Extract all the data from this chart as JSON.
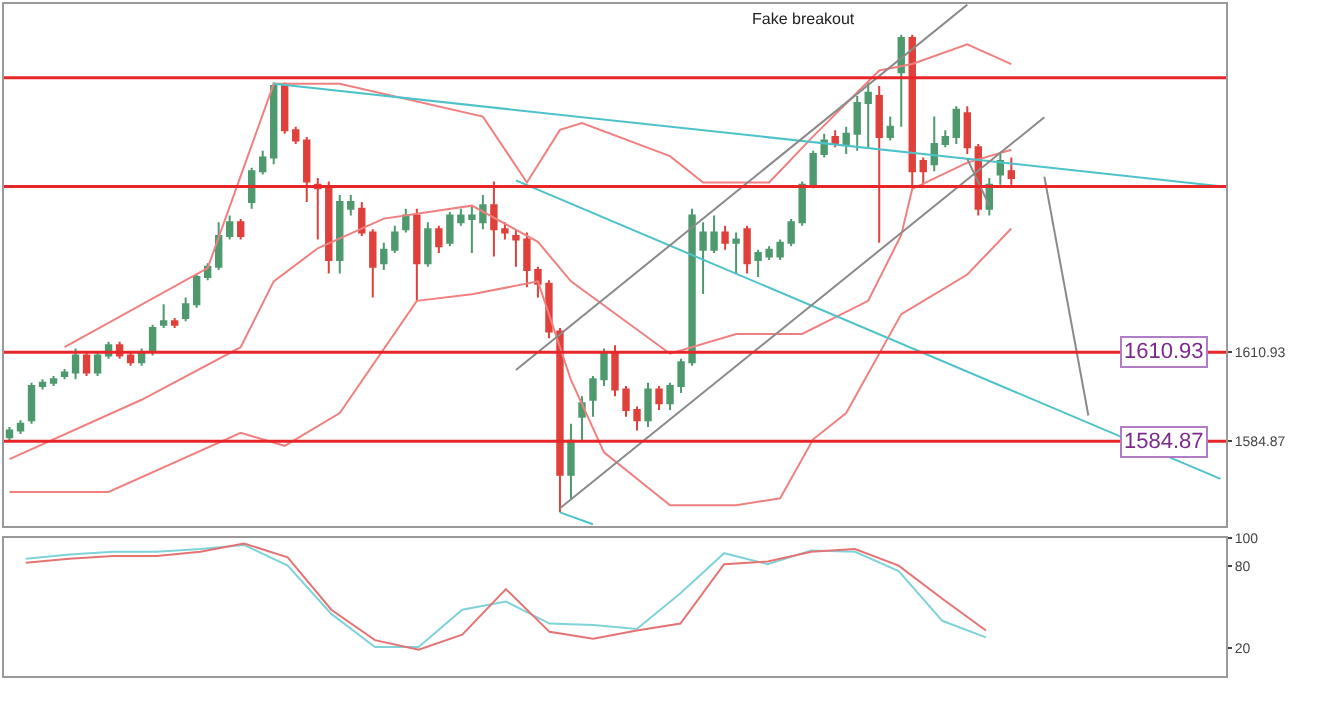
{
  "chart_data": [
    {
      "type": "candlestick",
      "ylim": [
        1560,
        1713
      ],
      "yticks": [
        {
          "value": 1610.93,
          "label": "1610.93"
        },
        {
          "value": 1584.87,
          "label": "1584.87"
        }
      ],
      "tick_labels": "y",
      "categories": [
        null,
        null,
        null,
        null,
        null,
        null,
        null,
        null,
        null,
        null,
        null,
        null,
        null,
        null,
        null,
        null,
        null,
        null,
        null,
        null,
        null,
        null,
        null,
        null,
        null,
        null,
        null,
        null,
        null,
        null,
        null,
        null,
        null,
        null,
        null,
        null,
        null,
        null,
        null,
        null,
        null,
        null,
        null,
        null,
        null,
        null,
        null,
        null,
        null,
        null,
        null,
        null,
        null,
        null,
        null,
        null,
        null,
        null,
        null,
        null,
        null,
        null,
        null,
        null,
        null,
        null,
        null,
        null,
        null,
        null,
        null,
        null,
        null,
        null,
        null,
        null,
        null,
        null,
        null,
        null,
        null,
        null,
        null,
        null,
        null,
        null,
        null,
        null,
        null,
        null,
        null,
        null,
        null,
        null,
        null,
        null,
        null,
        null,
        null,
        null,
        null,
        null,
        null,
        null,
        null,
        null,
        null,
        null,
        null,
        null,
        null
      ],
      "annotations": [
        "Fake breakout"
      ],
      "ref_lines": [
        {
          "axis": "y",
          "value": 1691.4,
          "label": null,
          "color": "#e8262a"
        },
        {
          "axis": "y",
          "value": 1659.5,
          "label": null,
          "color": "#e8262a"
        },
        {
          "axis": "y",
          "value": 1610.93,
          "label": "1610.93",
          "color": "#e8262a"
        },
        {
          "axis": "y",
          "value": 1584.87,
          "label": "1584.87",
          "color": "#e8262a"
        }
      ],
      "series": [
        {
          "type": "line",
          "color": "#f08080",
          "values": [
            null,
            null,
            null,
            null,
            null,
            1612.4,
            null,
            null,
            null,
            null,
            null,
            null,
            null,
            null,
            null,
            null,
            null,
            null,
            1635.6,
            null,
            null,
            null,
            null,
            null,
            1689.6,
            null,
            null,
            null,
            null,
            null,
            1689.6,
            null,
            null,
            null,
            null,
            null,
            null,
            null,
            null,
            null,
            null,
            null,
            null,
            1680,
            null,
            null,
            null,
            1660.7,
            null,
            null,
            1676.1,
            null,
            1678.1,
            null,
            null,
            null,
            null,
            null,
            null,
            null,
            1668.4,
            null,
            null,
            1660.7,
            null,
            null,
            null,
            null,
            null,
            1660.7,
            null,
            null,
            null,
            1674.2,
            null,
            null,
            null,
            null,
            null,
            1693.5,
            null,
            null,
            1695.4,
            null,
            null,
            null,
            null,
            1701.2,
            null,
            null,
            null,
            1695.4,
            null,
            null,
            null,
            null,
            null,
            null,
            null,
            null,
            null,
            null,
            null,
            null,
            null,
            null,
            null,
            null,
            null,
            null,
            null
          ]
        },
        {
          "type": "line",
          "color": "#f08080",
          "values": [
            1579.6,
            null,
            null,
            null,
            null,
            null,
            null,
            null,
            null,
            null,
            null,
            null,
            1597,
            null,
            null,
            null,
            null,
            null,
            null,
            null,
            null,
            1612.4,
            null,
            null,
            1631.7,
            null,
            null,
            null,
            1641.4,
            null,
            null,
            null,
            null,
            null,
            1650.1,
            null,
            null,
            null,
            null,
            null,
            null,
            null,
            1653.9,
            null,
            null,
            null,
            null,
            null,
            1643.3,
            null,
            null,
            1631.7,
            null,
            null,
            null,
            null,
            null,
            null,
            null,
            null,
            1610.5,
            null,
            null,
            null,
            null,
            null,
            1616.3,
            null,
            null,
            null,
            null,
            null,
            1616.3,
            null,
            null,
            null,
            null,
            null,
            1626,
            null,
            null,
            1645.3,
            1658.8,
            null,
            null,
            null,
            null,
            1666.5,
            null,
            null,
            null,
            1670.3,
            null,
            null,
            null,
            null,
            null,
            null,
            null,
            null,
            null,
            null,
            null,
            null,
            null,
            null,
            null,
            null,
            null,
            null,
            null
          ]
        },
        {
          "type": "line",
          "color": "#f08080",
          "values": [
            1570,
            null,
            null,
            null,
            null,
            null,
            null,
            null,
            null,
            1570,
            null,
            null,
            null,
            null,
            null,
            null,
            null,
            null,
            null,
            null,
            null,
            1587.3,
            null,
            null,
            null,
            1583.5,
            null,
            null,
            null,
            null,
            1593.1,
            null,
            null,
            null,
            null,
            null,
            null,
            1626,
            null,
            null,
            null,
            null,
            1627.9,
            null,
            null,
            null,
            null,
            null,
            1631.7,
            null,
            null,
            1602.8,
            null,
            null,
            1581.6,
            null,
            null,
            null,
            null,
            null,
            1566.1,
            null,
            null,
            null,
            null,
            null,
            1566.1,
            null,
            null,
            null,
            1568.1,
            null,
            null,
            1585.4,
            null,
            null,
            1593.1,
            null,
            null,
            null,
            null,
            1622.1,
            1624,
            null,
            null,
            null,
            null,
            1633.7,
            null,
            null,
            null,
            1647.2,
            null,
            null,
            null,
            null,
            null,
            null,
            null,
            null,
            null,
            null,
            null,
            null,
            null,
            null,
            null,
            null,
            null,
            null,
            null
          ]
        },
        {
          "type": "line",
          "color": "#4dc3c9",
          "values": [
            null,
            null,
            null,
            null,
            null,
            null,
            null,
            null,
            null,
            null,
            null,
            null,
            null,
            null,
            null,
            null,
            null,
            null,
            null,
            null,
            null,
            null,
            null,
            null,
            1689.6,
            null,
            null,
            null,
            null,
            null,
            null,
            null,
            null,
            null,
            null,
            null,
            null,
            null,
            null,
            null,
            null,
            null,
            null,
            null,
            null,
            null,
            null,
            null,
            null,
            null,
            null,
            null,
            null,
            null,
            null,
            null,
            null,
            null,
            null,
            null,
            null,
            null,
            null,
            null,
            null,
            null,
            null,
            null,
            null,
            null,
            null,
            null,
            null,
            null,
            null,
            null,
            null,
            null,
            null,
            null,
            null,
            null,
            null,
            null,
            null,
            null,
            null,
            null,
            null,
            null,
            null,
            null,
            null,
            null,
            null,
            null,
            null,
            null,
            null,
            null,
            null,
            null,
            null,
            null,
            null,
            null,
            null,
            null,
            null,
            null,
            1659.6
          ]
        },
        {
          "type": "line",
          "color": "#4dc3c9",
          "values": [
            null,
            null,
            null,
            null,
            null,
            null,
            null,
            null,
            null,
            null,
            null,
            null,
            null,
            null,
            null,
            null,
            null,
            null,
            null,
            null,
            null,
            null,
            null,
            null,
            null,
            null,
            null,
            null,
            null,
            null,
            null,
            null,
            null,
            null,
            null,
            null,
            null,
            null,
            null,
            null,
            null,
            null,
            null,
            null,
            null,
            null,
            1661.3,
            null,
            null,
            null,
            null,
            null,
            null,
            null,
            null,
            null,
            null,
            null,
            null,
            null,
            null,
            null,
            null,
            null,
            null,
            null,
            null,
            null,
            null,
            null,
            null,
            null,
            null,
            null,
            null,
            null,
            null,
            null,
            null,
            null,
            null,
            null,
            null,
            null,
            null,
            null,
            null,
            null,
            null,
            null,
            null,
            null,
            null,
            null,
            null,
            null,
            null,
            null,
            null,
            null,
            null,
            null,
            null,
            null,
            null,
            null,
            null,
            null,
            null,
            null,
            1573.8
          ]
        },
        {
          "type": "line",
          "color": "#4dc3c9",
          "values": [
            null,
            null,
            null,
            null,
            null,
            null,
            null,
            null,
            null,
            null,
            null,
            null,
            null,
            null,
            null,
            null,
            null,
            null,
            null,
            null,
            null,
            null,
            null,
            null,
            null,
            null,
            null,
            null,
            null,
            null,
            null,
            null,
            null,
            null,
            null,
            null,
            null,
            null,
            null,
            null,
            null,
            null,
            null,
            null,
            null,
            null,
            null,
            null,
            null,
            null,
            1564,
            null,
            null,
            1560.5,
            null,
            null,
            null,
            null,
            null,
            null,
            null,
            null,
            null,
            null,
            null,
            null,
            null,
            null,
            null,
            null,
            null,
            null,
            null,
            null,
            null,
            null,
            null,
            null,
            null,
            null,
            null,
            null,
            null,
            null,
            null,
            null,
            null,
            null,
            null,
            null,
            null,
            null,
            null,
            null,
            null,
            null,
            null,
            null,
            null,
            null,
            null,
            null,
            null,
            null,
            null,
            null,
            null,
            null,
            null,
            null,
            null
          ]
        },
        {
          "type": "line",
          "color": "#8a8a8a",
          "values": [
            null,
            null,
            null,
            null,
            null,
            null,
            null,
            null,
            null,
            null,
            null,
            null,
            null,
            null,
            null,
            null,
            null,
            null,
            null,
            null,
            null,
            null,
            null,
            null,
            null,
            null,
            null,
            null,
            null,
            null,
            null,
            null,
            null,
            null,
            null,
            null,
            null,
            null,
            null,
            null,
            null,
            null,
            null,
            null,
            null,
            null,
            1605.7,
            null,
            null,
            null,
            null,
            null,
            null,
            null,
            null,
            null,
            null,
            null,
            null,
            null,
            null,
            null,
            null,
            null,
            null,
            null,
            null,
            null,
            null,
            null,
            null,
            null,
            null,
            null,
            null,
            null,
            null,
            null,
            null,
            null,
            null,
            null,
            null,
            null,
            null,
            null,
            null,
            1712.8,
            null,
            null,
            null,
            null,
            null,
            null,
            null,
            null,
            null,
            null,
            null,
            null,
            null,
            null,
            null,
            null,
            null,
            null,
            null,
            null,
            null,
            null,
            null
          ]
        },
        {
          "type": "line",
          "color": "#8a8a8a",
          "values": [
            null,
            null,
            null,
            null,
            null,
            null,
            null,
            null,
            null,
            null,
            null,
            null,
            null,
            null,
            null,
            null,
            null,
            null,
            null,
            null,
            null,
            null,
            null,
            null,
            null,
            null,
            null,
            null,
            null,
            null,
            null,
            null,
            null,
            null,
            null,
            null,
            null,
            null,
            null,
            null,
            null,
            null,
            null,
            null,
            null,
            null,
            null,
            null,
            null,
            null,
            1565.2,
            null,
            null,
            null,
            null,
            null,
            null,
            null,
            null,
            null,
            null,
            null,
            null,
            null,
            null,
            null,
            null,
            null,
            null,
            null,
            null,
            null,
            null,
            null,
            null,
            null,
            null,
            null,
            null,
            null,
            null,
            null,
            null,
            null,
            null,
            null,
            null,
            null,
            null,
            null,
            null,
            null,
            null,
            null,
            1679.8,
            null,
            null,
            null,
            null,
            null,
            null,
            null,
            null,
            null,
            null,
            null,
            null,
            null,
            null,
            null,
            null
          ]
        },
        {
          "type": "line",
          "color": "#8a8a8a",
          "values": [
            null,
            null,
            null,
            null,
            null,
            null,
            null,
            null,
            null,
            null,
            null,
            null,
            null,
            null,
            null,
            null,
            null,
            null,
            null,
            null,
            null,
            null,
            null,
            null,
            null,
            null,
            null,
            null,
            null,
            null,
            null,
            null,
            null,
            null,
            null,
            null,
            null,
            null,
            null,
            null,
            null,
            null,
            null,
            null,
            null,
            null,
            null,
            null,
            null,
            null,
            null,
            null,
            null,
            null,
            null,
            null,
            null,
            null,
            null,
            null,
            null,
            null,
            null,
            null,
            null,
            null,
            null,
            null,
            null,
            null,
            null,
            null,
            null,
            null,
            null,
            null,
            null,
            null,
            null,
            null,
            null,
            null,
            null,
            null,
            null,
            null,
            null,
            1667.6,
            null,
            1653.9,
            null,
            null,
            null,
            null,
            null,
            null,
            null,
            null,
            null,
            null,
            null,
            null,
            null,
            null,
            null,
            null,
            null,
            null,
            null,
            null,
            null
          ]
        },
        {
          "type": "line",
          "color": "#8a8a8a",
          "values": [
            null,
            null,
            null,
            null,
            null,
            null,
            null,
            null,
            null,
            null,
            null,
            null,
            null,
            null,
            null,
            null,
            null,
            null,
            null,
            null,
            null,
            null,
            null,
            null,
            null,
            null,
            null,
            null,
            null,
            null,
            null,
            null,
            null,
            null,
            null,
            null,
            null,
            null,
            null,
            null,
            null,
            null,
            null,
            null,
            null,
            null,
            null,
            null,
            null,
            null,
            null,
            null,
            null,
            null,
            null,
            null,
            null,
            null,
            null,
            null,
            null,
            null,
            null,
            null,
            null,
            null,
            null,
            null,
            null,
            null,
            null,
            null,
            null,
            null,
            null,
            null,
            null,
            null,
            null,
            null,
            null,
            null,
            null,
            null,
            null,
            null,
            null,
            null,
            null,
            null,
            null,
            null,
            null,
            null,
            1662.4,
            null,
            null,
            null,
            1592.4,
            null,
            null,
            null,
            null,
            null,
            null,
            null,
            null,
            null,
            null,
            null,
            null
          ]
        },
        {
          "type": "candlestick",
          "colors": [
            "#4e9a6e",
            "#4e9a6e",
            "#4e9a6e",
            "#4e9a6e",
            "#4e9a6e",
            "#4e9a6e",
            "#4e9a6e",
            "#e0403a",
            "#4e9a6e",
            "#4e9a6e",
            "#e0403a",
            "#e0403a",
            "#4e9a6e",
            "#4e9a6e",
            "#4e9a6e",
            "#e0403a",
            "#4e9a6e",
            "#4e9a6e",
            "#4e9a6e",
            "#4e9a6e",
            "#4e9a6e",
            "#e0403a",
            "#4e9a6e",
            "#4e9a6e",
            "#4e9a6e",
            "#e0403a",
            "#e0403a",
            "#e0403a",
            "#e0403a",
            "#e0403a",
            "#4e9a6e",
            "#4e9a6e",
            "#e0403a",
            "#e0403a",
            "#4e9a6e",
            "#4e9a6e",
            "#4e9a6e",
            "#e0403a",
            "#4e9a6e",
            "#e0403a",
            "#4e9a6e",
            "#4e9a6e",
            "#4e9a6e",
            "#4e9a6e",
            "#e0403a",
            "#e0403a",
            "#e0403a",
            "#e0403a",
            "#e0403a",
            "#e0403a",
            "#e0403a",
            "#4e9a6e",
            "#4e9a6e",
            "#4e9a6e",
            "#4e9a6e",
            "#e0403a",
            "#e0403a",
            "#e0403a",
            "#4e9a6e",
            "#e0403a",
            "#4e9a6e",
            "#4e9a6e",
            "#4e9a6e",
            "#4e9a6e",
            "#4e9a6e",
            "#e0403a",
            "#4e9a6e",
            "#e0403a",
            "#4e9a6e",
            "#4e9a6e",
            "#4e9a6e",
            "#4e9a6e",
            "#4e9a6e",
            "#4e9a6e",
            "#4e9a6e",
            "#e0403a",
            "#4e9a6e",
            "#4e9a6e",
            "#4e9a6e",
            "#e0403a",
            "#4e9a6e",
            "#4e9a6e",
            "#e0403a",
            "#e0403a",
            "#4e9a6e",
            "#4e9a6e",
            "#4e9a6e",
            "#e0403a",
            "#e0403a",
            "#4e9a6e",
            "#4e9a6e",
            "#e0403a",
            null,
            null,
            null,
            null,
            null,
            null,
            null,
            null,
            null,
            null,
            null,
            null,
            null,
            null,
            null,
            null,
            null,
            null,
            null
          ],
          "ohlc": [
            [
              1586,
              1589,
              1585,
              1588
            ],
            [
              1588,
              1591,
              1587,
              1590
            ],
            [
              1591,
              1602,
              1590,
              1601
            ],
            [
              1601,
              1603,
              1600,
              1602
            ],
            [
              1602,
              1604,
              1601,
              1603
            ],
            [
              1604,
              1606,
              1603,
              1605
            ],
            [
              1605,
              1612,
              1603,
              1610
            ],
            [
              1610,
              1611,
              1604,
              1605
            ],
            [
              1605,
              1611,
              1604,
              1610
            ],
            [
              1610,
              1614,
              1609,
              1613
            ],
            [
              1613,
              1614,
              1609,
              1610
            ],
            [
              1610,
              1611,
              1607,
              1608
            ],
            [
              1608,
              1612,
              1607,
              1611
            ],
            [
              1611,
              1619,
              1610,
              1618
            ],
            [
              1619,
              1625,
              1618,
              1620
            ],
            [
              1620,
              1621,
              1618,
              1619
            ],
            [
              1621,
              1627,
              1620,
              1625
            ],
            [
              1625,
              1634,
              1624,
              1633
            ],
            [
              1633,
              1637,
              1632,
              1636
            ],
            [
              1636,
              1649,
              1635,
              1645
            ],
            [
              1645,
              1651,
              1644,
              1649
            ],
            [
              1649,
              1650,
              1644,
              1645
            ],
            [
              1655,
              1665,
              1653,
              1664
            ],
            [
              1664,
              1670,
              1663,
              1668
            ],
            [
              1668,
              1690,
              1666,
              1689
            ],
            [
              1689,
              1690,
              1675,
              1676
            ],
            [
              1676,
              1677,
              1672,
              1673
            ],
            [
              1673,
              1674,
              1655,
              1661
            ],
            [
              1660,
              1662,
              1644,
              1659
            ],
            [
              1659,
              1661,
              1634,
              1638
            ],
            [
              1638,
              1657,
              1634,
              1655
            ],
            [
              1653,
              1657,
              1651,
              1655
            ],
            [
              1653,
              1655,
              1645,
              1646
            ],
            [
              1646,
              1647,
              1627,
              1636
            ],
            [
              1637,
              1643,
              1635,
              1641
            ],
            [
              1641,
              1648,
              1640,
              1646
            ],
            [
              1647,
              1653,
              1646,
              1651
            ],
            [
              1651,
              1653,
              1626,
              1637
            ],
            [
              1637,
              1649,
              1636,
              1647
            ],
            [
              1647,
              1648,
              1640,
              1642
            ],
            [
              1643,
              1652,
              1642,
              1651
            ],
            [
              1649,
              1653,
              1648,
              1651
            ],
            [
              1650,
              1654,
              1640,
              1651
            ],
            [
              1649,
              1657,
              1647,
              1654
            ],
            [
              1654,
              1661,
              1639,
              1647
            ],
            [
              1647,
              1649,
              1644,
              1646
            ],
            [
              1645,
              1647,
              1636,
              1644
            ],
            [
              1644,
              1646,
              1630,
              1635
            ],
            [
              1635,
              1636,
              1627,
              1631
            ],
            [
              1631,
              1632,
              1615,
              1617
            ],
            [
              1617,
              1618,
              1564,
              1575
            ],
            [
              1575,
              1590,
              1568,
              1585
            ],
            [
              1592,
              1598,
              1585,
              1596
            ],
            [
              1597,
              1604,
              1592,
              1603
            ],
            [
              1603,
              1612,
              1601,
              1611
            ],
            [
              1611,
              1613,
              1598,
              1600
            ],
            [
              1600,
              1601,
              1592,
              1594
            ],
            [
              1594,
              1595,
              1588,
              1591
            ],
            [
              1591,
              1602,
              1589,
              1600
            ],
            [
              1600,
              1601,
              1594,
              1596
            ],
            [
              1596,
              1602,
              1594,
              1601
            ],
            [
              1601,
              1609,
              1599,
              1608
            ],
            [
              1608,
              1653,
              1607,
              1651
            ],
            [
              1641,
              1649,
              1628,
              1646
            ],
            [
              1641,
              1651,
              1640,
              1646
            ],
            [
              1646,
              1648,
              1641,
              1643
            ],
            [
              1643,
              1646,
              1634,
              1644
            ],
            [
              1647,
              1648,
              1634,
              1637
            ],
            [
              1638,
              1641,
              1633,
              1640
            ],
            [
              1639,
              1642,
              1638,
              1641
            ],
            [
              1639,
              1644,
              1638,
              1643
            ],
            [
              1643,
              1650,
              1642,
              1649
            ],
            [
              1649,
              1661,
              1648,
              1660
            ],
            [
              1660,
              1670,
              1659,
              1669
            ],
            [
              1669,
              1675,
              1668,
              1673
            ],
            [
              1674,
              1676,
              1671,
              1672
            ],
            [
              1672,
              1677,
              1669,
              1675
            ],
            [
              1675,
              1686,
              1670,
              1684
            ],
            [
              1684,
              1690,
              1671,
              1687
            ],
            [
              1686,
              1689,
              1643,
              1674
            ],
            [
              1674,
              1680,
              1673,
              1677
            ],
            [
              1693,
              1704,
              1677,
              1703
            ],
            [
              1703,
              1704,
              1659,
              1664
            ],
            [
              1667,
              1668,
              1660,
              1664
            ],
            [
              1666,
              1680,
              1664,
              1672
            ],
            [
              1672,
              1676,
              1671,
              1674
            ],
            [
              1674,
              1683,
              1672,
              1682
            ],
            [
              1681,
              1683,
              1669,
              1671
            ],
            [
              1671,
              1672,
              1651,
              1653
            ],
            [
              1653,
              1662,
              1651,
              1660
            ],
            [
              1663,
              1669,
              1660,
              1667
            ],
            [
              1664,
              1668,
              1660,
              1662
            ],
            null,
            null,
            null,
            null,
            null,
            null,
            null,
            null,
            null,
            null,
            null,
            null,
            null,
            null,
            null,
            null,
            null,
            null,
            null
          ]
        }
      ]
    },
    {
      "type": "line",
      "ylim": [
        0,
        100
      ],
      "yticks": [
        20,
        80,
        100
      ],
      "tick_labels": "y",
      "categories": [
        null,
        null,
        null,
        null,
        null,
        null,
        null,
        null,
        null,
        null,
        null,
        null,
        null,
        null,
        null,
        null,
        null,
        null,
        null,
        null,
        null,
        null,
        null,
        null,
        null,
        null,
        null,
        null
      ],
      "series": [
        {
          "color": "#7fd3d8",
          "values": [
            85,
            88,
            90,
            90,
            92,
            95,
            80,
            45,
            21,
            21,
            48,
            54,
            38,
            37,
            34,
            60,
            89,
            81,
            91,
            90,
            76,
            40,
            28,
            null,
            null,
            null,
            null,
            null
          ]
        },
        {
          "color": "#e57373",
          "values": [
            82,
            85,
            87,
            87,
            90,
            96,
            86,
            48,
            26,
            19,
            30,
            63,
            32,
            27,
            33,
            38,
            81,
            83,
            90,
            92,
            80,
            56,
            33,
            null,
            null,
            null,
            null,
            null
          ]
        }
      ]
    }
  ]
}
